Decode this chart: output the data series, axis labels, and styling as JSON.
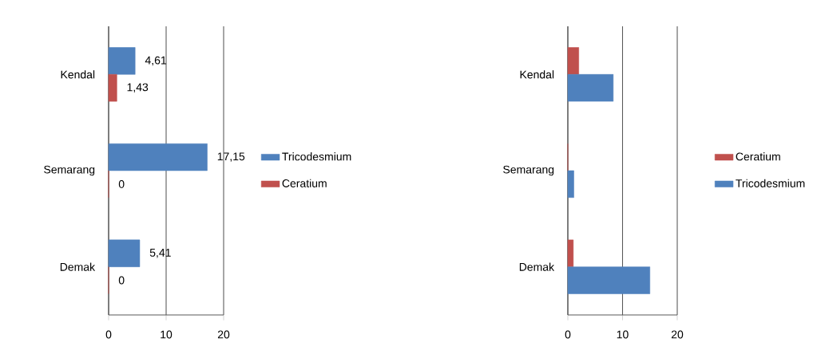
{
  "chart_data": [
    {
      "type": "bar",
      "orientation": "horizontal",
      "categories": [
        "Kendal",
        "Semarang",
        "Demak"
      ],
      "series": [
        {
          "name": "Tricodesmium",
          "color": "#4f81bd",
          "values": [
            4.61,
            17.15,
            5.41
          ],
          "value_labels": [
            "4,61",
            "17,15",
            "5,41"
          ]
        },
        {
          "name": "Ceratium",
          "color": "#c0504d",
          "values": [
            1.43,
            0,
            0
          ],
          "value_labels": [
            "1,43",
            "0",
            "0"
          ]
        }
      ],
      "xlim": [
        0,
        20
      ],
      "xticks": [
        0,
        10,
        20
      ],
      "grid": "x",
      "legend": "right"
    },
    {
      "type": "bar",
      "orientation": "horizontal",
      "categories": [
        "Kendal",
        "Semarang",
        "Demak"
      ],
      "series": [
        {
          "name": "Ceratium",
          "color": "#c0504d",
          "values": [
            2.0,
            0,
            1.0
          ]
        },
        {
          "name": "Tricodesmium",
          "color": "#4f81bd",
          "values": [
            8.3,
            1.1,
            15.0
          ]
        }
      ],
      "xlim": [
        0,
        20
      ],
      "xticks": [
        0,
        10,
        20
      ],
      "grid": "x",
      "legend": "right"
    }
  ]
}
